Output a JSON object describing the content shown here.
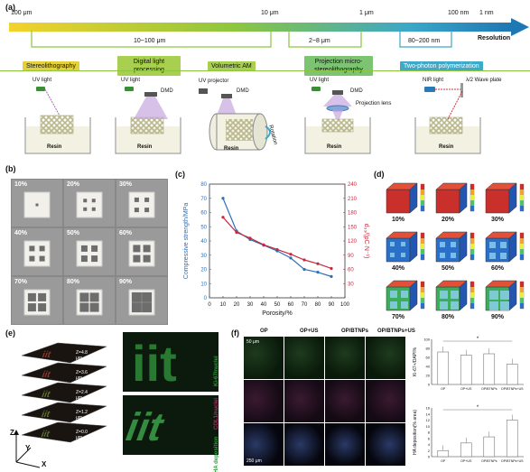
{
  "panel_a": {
    "label": "(a)",
    "scale_ticks": [
      "100 μm",
      "10 μm",
      "1 μm",
      "100 nm",
      "1 nm"
    ],
    "resolution_label": "Resolution",
    "ranges": [
      "10~100 μm",
      "2~8 μm",
      "80~200 nm"
    ],
    "techniques": [
      {
        "name": "Stereolithography",
        "color": "#e4d13a"
      },
      {
        "name": "Digital light processing",
        "color": "#a8cf4f"
      },
      {
        "name": "Volumetric AM",
        "color": "#a8cf4f"
      },
      {
        "name": "Projection micro-stereolithography",
        "color": "#7cc472"
      },
      {
        "name": "Two-photon polymerization",
        "color": "#3ea9c9"
      }
    ],
    "setups": [
      {
        "labels": [
          "UV light"
        ],
        "resin": "Resin"
      },
      {
        "labels": [
          "UV light",
          "DMD"
        ],
        "resin": "Resin"
      },
      {
        "labels": [
          "UV projector",
          "DMD",
          "Rotation"
        ],
        "resin": "Resin"
      },
      {
        "labels": [
          "UV light",
          "DMD",
          "Projection lens"
        ],
        "resin": "Resin"
      },
      {
        "labels": [
          "NIR light",
          "λ/2 Wave plate"
        ],
        "resin": "Resin"
      }
    ]
  },
  "panel_b": {
    "label": "(b)",
    "porosities": [
      "10%",
      "20%",
      "30%",
      "40%",
      "50%",
      "60%",
      "70%",
      "80%",
      "90%"
    ]
  },
  "panel_c": {
    "label": "(c)"
  },
  "panel_d": {
    "label": "(d)",
    "porosities": [
      "10%",
      "20%",
      "30%",
      "40%",
      "50%",
      "60%",
      "70%",
      "80%",
      "90%"
    ]
  },
  "panel_e": {
    "label": "(e)",
    "layers": [
      "Z=4.8 μm",
      "Z=3.6 μm",
      "Z=2.4 μm",
      "Z=1.2 μm",
      "Z=0.0 μm"
    ],
    "axes": [
      "Z",
      "Y",
      "X"
    ]
  },
  "panel_f": {
    "label": "(f)",
    "columns": [
      "OP",
      "OP+US",
      "OP/BTNPs",
      "OP/BTNPs+US"
    ],
    "rows": [
      "Ki-67/nuclei",
      "COL1/nuclei",
      "HA deposition"
    ],
    "scale_top": "50 μm",
    "scale_bottom": "250 μm",
    "bar_chart_1": {
      "ylabel": "Ki-67+/DAPI%",
      "categories": [
        "OP",
        "OP+US",
        "OP/BTNPs",
        "OP/BTNPs+US"
      ],
      "values": [
        72,
        65,
        68,
        45
      ],
      "ylim": [
        0,
        100
      ],
      "ticks": [
        "0",
        "20",
        "40",
        "60",
        "80",
        "100"
      ],
      "marker": "*"
    },
    "bar_chart_2": {
      "ylabel": "HA deposition(% area)",
      "categories": [
        "OP",
        "OP+US",
        "OP/BTNPs",
        "OP/BTNPs+US"
      ],
      "values": [
        2,
        4.5,
        6.5,
        12
      ],
      "ylim": [
        0,
        16
      ],
      "ticks": [
        "0",
        "2",
        "4",
        "6",
        "8",
        "10",
        "12",
        "14",
        "16"
      ],
      "marker": "*"
    }
  },
  "chart_data": {
    "type": "line",
    "xlabel": "Porosity/%",
    "ylabel": "Compressive strength/MPa",
    "y2label": "d₃₃/(pC·N⁻¹)",
    "xlim": [
      0,
      100
    ],
    "ylim": [
      0,
      80
    ],
    "y2lim": [
      0,
      240
    ],
    "x_ticks": [
      "0",
      "10",
      "20",
      "30",
      "40",
      "50",
      "60",
      "70",
      "80",
      "90",
      "100"
    ],
    "y_ticks": [
      "0",
      "10",
      "20",
      "30",
      "40",
      "50",
      "60",
      "70",
      "80"
    ],
    "y2_ticks": [
      "30",
      "60",
      "90",
      "120",
      "150",
      "180",
      "210",
      "240"
    ],
    "series": [
      {
        "color": "#2e6fb5",
        "x": [
          10,
          20,
          30,
          40,
          50,
          60,
          70,
          80,
          90
        ],
        "y": [
          70,
          47,
          41,
          37,
          33,
          28,
          20,
          18,
          15
        ]
      },
      {
        "color": "#c8293e",
        "x": [
          10,
          20,
          30,
          40,
          50,
          60,
          70,
          80,
          90
        ],
        "y2": [
          170,
          138,
          126,
          112,
          102,
          92,
          80,
          72,
          62
        ]
      }
    ]
  }
}
